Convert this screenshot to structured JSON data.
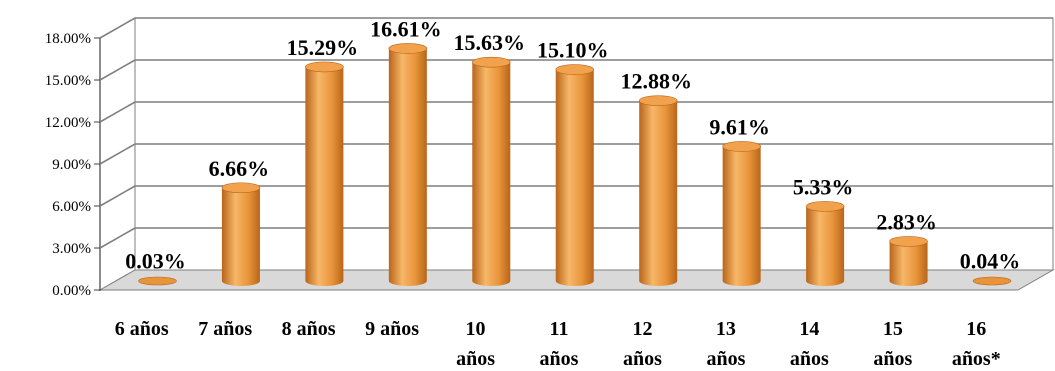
{
  "chart_data": {
    "type": "bar",
    "title": "",
    "xlabel": "",
    "ylabel": "",
    "categories": [
      "6 años",
      "7 años",
      "8 años",
      "9 años",
      "10 años",
      "11 años",
      "12 años",
      "13 años",
      "14 años",
      "15 años",
      "16 años*"
    ],
    "category_lines": [
      [
        "6 años"
      ],
      [
        "7 años"
      ],
      [
        "8 años"
      ],
      [
        "9 años"
      ],
      [
        "10",
        "años"
      ],
      [
        "11",
        "años"
      ],
      [
        "12",
        "años"
      ],
      [
        "13",
        "años"
      ],
      [
        "14",
        "años"
      ],
      [
        "15",
        "años"
      ],
      [
        "16",
        "años*"
      ]
    ],
    "values": [
      0.03,
      6.66,
      15.29,
      16.61,
      15.63,
      15.1,
      12.88,
      9.61,
      5.33,
      2.83,
      0.04
    ],
    "data_labels": [
      "0.03%",
      "6.66%",
      "15.29%",
      "16.61%",
      "15.63%",
      "15.10%",
      "12.88%",
      "9.61%",
      "5.33%",
      "2.83%",
      "0.04%"
    ],
    "ylim": [
      0,
      18
    ],
    "yticks": [
      0,
      3,
      6,
      9,
      12,
      15,
      18
    ],
    "ytick_labels": [
      "0.00%",
      "3.00%",
      "6.00%",
      "9.00%",
      "12.00%",
      "15.00%",
      "18.00%"
    ],
    "grid": true,
    "style": "3d-cylinder",
    "colors": {
      "bar_light": "#F7B768",
      "bar_main": "#E8943A",
      "bar_dark": "#B8651A",
      "bar_top": "#F2A24C",
      "wall": "#ffffff",
      "floor": "#d9d9d9",
      "grid": "#7f7f7f"
    }
  }
}
